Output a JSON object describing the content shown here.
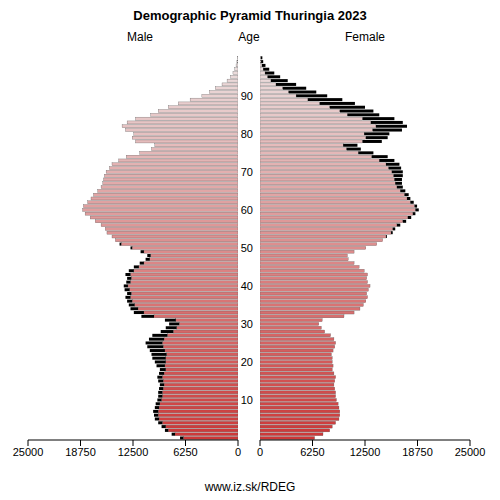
{
  "chart_data": {
    "type": "bar",
    "orientation": "horizontal",
    "title": "Demographic Pyramid Thuringia 2023",
    "y_label": "Age",
    "annotations": [
      "www.iz.sk/RDEG"
    ],
    "categories": [
      null,
      null,
      null,
      null,
      null,
      null,
      null,
      null,
      null,
      null,
      "10",
      null,
      null,
      null,
      null,
      null,
      null,
      null,
      null,
      null,
      "20",
      null,
      null,
      null,
      null,
      null,
      null,
      null,
      null,
      null,
      "30",
      null,
      null,
      null,
      null,
      null,
      null,
      null,
      null,
      null,
      "40",
      null,
      null,
      null,
      null,
      null,
      null,
      null,
      null,
      null,
      "50",
      null,
      null,
      null,
      null,
      null,
      null,
      null,
      null,
      null,
      "60",
      null,
      null,
      null,
      null,
      null,
      null,
      null,
      null,
      null,
      "70",
      null,
      null,
      null,
      null,
      null,
      null,
      null,
      null,
      null,
      "80",
      null,
      null,
      null,
      null,
      null,
      null,
      null,
      null,
      null,
      "90",
      null,
      null,
      null,
      null,
      null,
      null,
      null,
      null,
      null,
      null
    ],
    "xlim": [
      0,
      25000
    ],
    "xticks": [
      0,
      6250,
      12500,
      18750,
      25000
    ],
    "series": [
      {
        "name": "Male",
        "values": [
          6900,
          7900,
          8700,
          9100,
          9500,
          9900,
          10000,
          10100,
          9900,
          9800,
          9600,
          9500,
          9500,
          9400,
          9300,
          9500,
          9600,
          9400,
          9300,
          9700,
          9900,
          10200,
          10300,
          10500,
          10800,
          11000,
          10600,
          10200,
          9200,
          8600,
          8200,
          8700,
          11500,
          12400,
          12800,
          13000,
          13200,
          13400,
          13200,
          13500,
          13600,
          13300,
          13200,
          13400,
          13000,
          12400,
          11700,
          11000,
          10800,
          11600,
          12800,
          14100,
          14600,
          15000,
          15600,
          15800,
          16300,
          17000,
          17600,
          18200,
          18500,
          18400,
          17900,
          17500,
          17200,
          16700,
          16300,
          16100,
          16000,
          15900,
          15700,
          15300,
          15000,
          14200,
          13300,
          11700,
          10300,
          9900,
          12200,
          12600,
          12400,
          13400,
          13800,
          13200,
          12200,
          10400,
          9500,
          8300,
          7100,
          5700,
          4300,
          3400,
          2700,
          1900,
          1300,
          900,
          600,
          380,
          230,
          130,
          90
        ]
      },
      {
        "name": "Female",
        "values": [
          6500,
          7500,
          8300,
          8600,
          9000,
          9400,
          9500,
          9500,
          9400,
          9300,
          9100,
          9000,
          9000,
          8900,
          8800,
          8900,
          9000,
          8800,
          8600,
          8700,
          8600,
          8600,
          8500,
          8700,
          8900,
          9000,
          8800,
          8400,
          7700,
          7300,
          7000,
          7400,
          10000,
          11200,
          11900,
          12300,
          12600,
          12800,
          12700,
          12900,
          13100,
          12800,
          12700,
          12800,
          12400,
          11800,
          11200,
          10500,
          10400,
          11200,
          12600,
          13900,
          14600,
          15100,
          15800,
          16100,
          16700,
          17400,
          18000,
          18500,
          18900,
          18700,
          18300,
          17900,
          17700,
          17300,
          17000,
          16900,
          16900,
          17000,
          17000,
          16800,
          16600,
          16000,
          15200,
          13500,
          12000,
          11600,
          14500,
          15200,
          15400,
          16900,
          17500,
          17000,
          16000,
          14200,
          13500,
          12500,
          11300,
          9800,
          8000,
          6700,
          5500,
          4300,
          3300,
          2400,
          1700,
          1100,
          650,
          380,
          280
        ]
      }
    ]
  }
}
